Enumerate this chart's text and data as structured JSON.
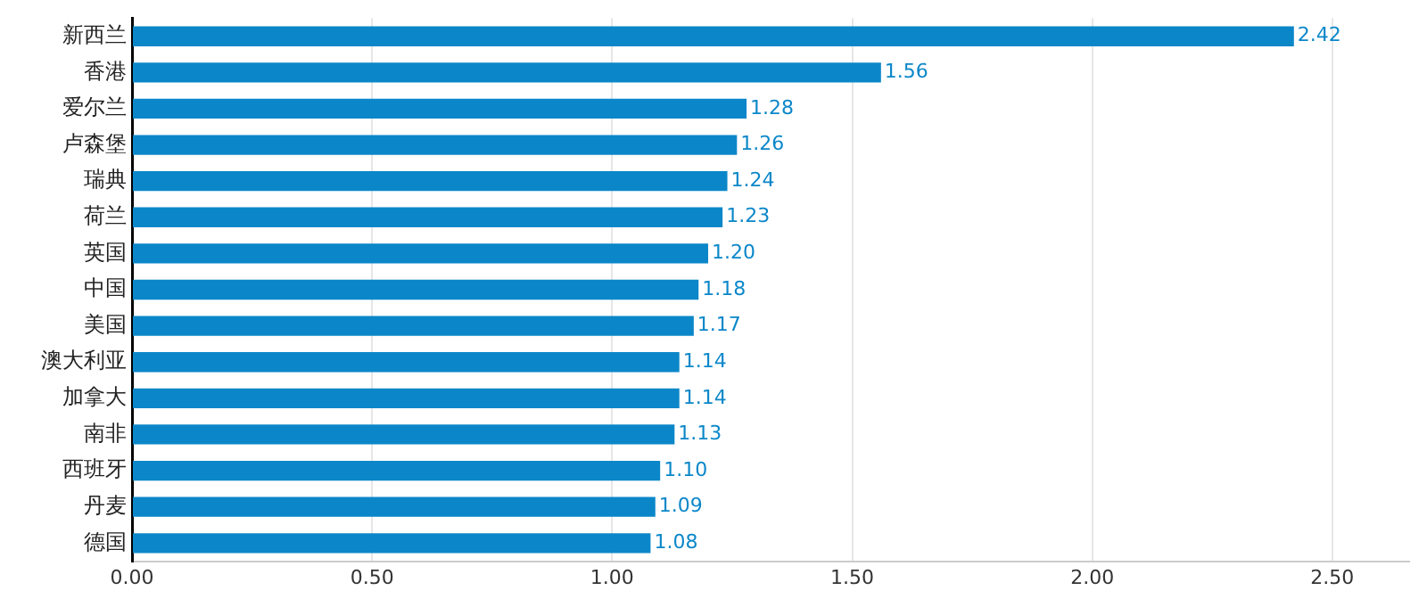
{
  "chart_data": {
    "type": "bar",
    "orientation": "horizontal",
    "categories": [
      "新西兰",
      "香港",
      "爱尔兰",
      "卢森堡",
      "瑞典",
      "荷兰",
      "英国",
      "中国",
      "美国",
      "澳大利亚",
      "加拿大",
      "南非",
      "西班牙",
      "丹麦",
      "德国"
    ],
    "values": [
      2.42,
      1.56,
      1.28,
      1.26,
      1.24,
      1.23,
      1.2,
      1.18,
      1.17,
      1.14,
      1.14,
      1.13,
      1.1,
      1.09,
      1.08
    ],
    "value_labels": [
      "2.42",
      "1.56",
      "1.28",
      "1.26",
      "1.24",
      "1.23",
      "1.20",
      "1.18",
      "1.17",
      "1.14",
      "1.14",
      "1.13",
      "1.10",
      "1.09",
      "1.08"
    ],
    "color": "#0b87c9",
    "xlim": [
      0,
      2.66
    ],
    "xticks": [
      {
        "value": 0,
        "label": "0.00"
      },
      {
        "value": 0.5,
        "label": "0.50"
      },
      {
        "value": 1,
        "label": "1.00"
      },
      {
        "value": 1.5,
        "label": "1.50"
      },
      {
        "value": 2,
        "label": "2.00"
      },
      {
        "value": 2.5,
        "label": "2.50"
      }
    ],
    "grid": "x",
    "legend": false
  }
}
